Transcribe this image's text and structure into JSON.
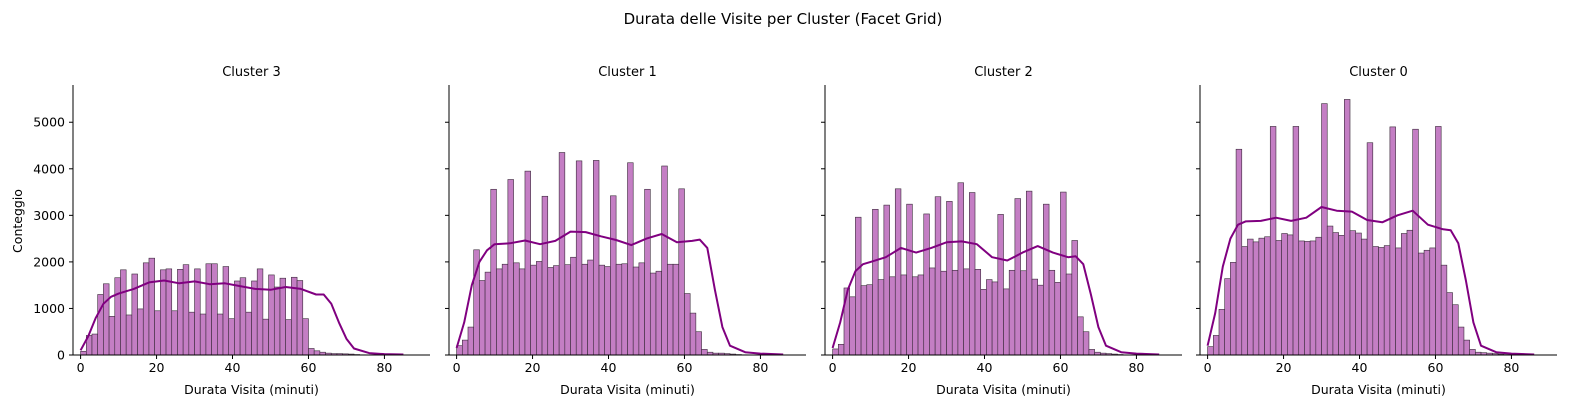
{
  "figure": {
    "title": "Durata delle Visite per Cluster (Facet Grid)"
  },
  "colors": {
    "bar_fill": "#c47ec4",
    "bar_stroke": "#3a2a3a",
    "kde_line": "#800080",
    "axis": "#000000"
  },
  "chart_data": [
    {
      "type": "bar",
      "title": "Cluster 3",
      "xlabel": "Durata Visita (minuti)",
      "ylabel": "Conteggio",
      "xlim": [
        -2,
        92
      ],
      "ylim": [
        0,
        5800
      ],
      "xticks": [
        0,
        20,
        40,
        60,
        80
      ],
      "yticks": [
        0,
        1000,
        2000,
        3000,
        4000,
        5000
      ],
      "bin_width": 1.5,
      "bin_start": 0,
      "values": [
        80,
        420,
        450,
        1300,
        1530,
        830,
        1660,
        1830,
        860,
        1740,
        990,
        1980,
        2080,
        950,
        1830,
        1850,
        950,
        1840,
        1940,
        920,
        1850,
        880,
        1960,
        1960,
        880,
        1900,
        780,
        1590,
        1660,
        920,
        1590,
        1850,
        770,
        1720,
        1460,
        1650,
        760,
        1670,
        1600,
        780,
        140,
        90,
        60,
        40,
        30,
        30,
        25,
        20,
        10,
        5,
        0,
        0,
        0,
        0,
        0,
        0,
        0
      ],
      "kde": {
        "x": [
          0,
          2,
          4,
          6,
          8,
          10,
          14,
          18,
          22,
          26,
          30,
          34,
          38,
          42,
          46,
          50,
          54,
          58,
          62,
          64,
          66,
          68,
          70,
          72,
          76,
          80,
          85
        ],
        "y": [
          100,
          400,
          800,
          1100,
          1250,
          1320,
          1420,
          1560,
          1600,
          1540,
          1580,
          1520,
          1540,
          1480,
          1420,
          1400,
          1460,
          1420,
          1300,
          1300,
          1100,
          700,
          350,
          140,
          40,
          20,
          10
        ]
      },
      "show_yticklabels": true
    },
    {
      "type": "bar",
      "title": "Cluster 1",
      "xlabel": "Durata Visita (minuti)",
      "ylabel": "",
      "xlim": [
        -2,
        92
      ],
      "ylim": [
        0,
        5800
      ],
      "xticks": [
        0,
        20,
        40,
        60,
        80
      ],
      "yticks": [
        0,
        1000,
        2000,
        3000,
        4000,
        5000
      ],
      "bin_width": 1.5,
      "bin_start": 0,
      "values": [
        200,
        320,
        600,
        2260,
        1600,
        1780,
        3560,
        1850,
        1950,
        3770,
        1980,
        1850,
        3950,
        1930,
        2010,
        3410,
        1880,
        1920,
        4350,
        1940,
        2100,
        4170,
        1950,
        2040,
        4180,
        1930,
        1900,
        3420,
        1950,
        1960,
        4130,
        1890,
        1980,
        3560,
        1760,
        1800,
        4060,
        1950,
        1950,
        3570,
        1320,
        900,
        500,
        120,
        60,
        40,
        40,
        30,
        20,
        10,
        5,
        0,
        0,
        0,
        0,
        0,
        0
      ],
      "kde": {
        "x": [
          0,
          2,
          4,
          6,
          8,
          10,
          14,
          18,
          22,
          26,
          30,
          34,
          38,
          42,
          46,
          50,
          54,
          58,
          62,
          64,
          66,
          68,
          70,
          72,
          76,
          80,
          86
        ],
        "y": [
          150,
          700,
          1500,
          2000,
          2250,
          2380,
          2400,
          2460,
          2380,
          2450,
          2650,
          2640,
          2550,
          2470,
          2360,
          2500,
          2600,
          2420,
          2450,
          2480,
          2300,
          1400,
          600,
          200,
          60,
          30,
          10
        ]
      },
      "show_yticklabels": false
    },
    {
      "type": "bar",
      "title": "Cluster 2",
      "xlabel": "Durata Visita (minuti)",
      "ylabel": "",
      "xlim": [
        -2,
        92
      ],
      "ylim": [
        0,
        5800
      ],
      "xticks": [
        0,
        20,
        40,
        60,
        80
      ],
      "yticks": [
        0,
        1000,
        2000,
        3000,
        4000,
        5000
      ],
      "bin_width": 1.5,
      "bin_start": 0,
      "values": [
        130,
        230,
        1440,
        1250,
        2960,
        1490,
        1510,
        3130,
        1620,
        3220,
        1680,
        3570,
        1720,
        3240,
        1680,
        1720,
        3030,
        1870,
        3400,
        1800,
        3300,
        1820,
        3700,
        1850,
        3490,
        1840,
        1410,
        1620,
        1570,
        3020,
        1420,
        1820,
        3360,
        1810,
        3520,
        1630,
        1500,
        3240,
        1820,
        1560,
        3500,
        1740,
        2460,
        820,
        500,
        120,
        60,
        40,
        30,
        20,
        10,
        0,
        0,
        0,
        0,
        0,
        0
      ],
      "kde": {
        "x": [
          0,
          2,
          4,
          6,
          8,
          10,
          14,
          18,
          22,
          26,
          30,
          34,
          38,
          42,
          46,
          50,
          54,
          58,
          62,
          64,
          66,
          68,
          70,
          72,
          76,
          80,
          86
        ],
        "y": [
          150,
          700,
          1400,
          1800,
          1950,
          2000,
          2100,
          2300,
          2200,
          2300,
          2420,
          2440,
          2380,
          2100,
          2030,
          2200,
          2340,
          2200,
          2100,
          2120,
          1950,
          1300,
          600,
          200,
          60,
          30,
          10
        ]
      },
      "show_yticklabels": false
    },
    {
      "type": "bar",
      "title": "Cluster 0",
      "xlabel": "Durata Visita (minuti)",
      "ylabel": "",
      "xlim": [
        -2,
        92
      ],
      "ylim": [
        0,
        5800
      ],
      "xticks": [
        0,
        20,
        40,
        60,
        80
      ],
      "yticks": [
        0,
        1000,
        2000,
        3000,
        4000,
        5000
      ],
      "bin_width": 1.5,
      "bin_start": 0,
      "values": [
        180,
        420,
        980,
        1640,
        1990,
        4420,
        2330,
        2490,
        2430,
        2510,
        2540,
        4910,
        2460,
        2610,
        2580,
        4910,
        2450,
        2440,
        2450,
        2530,
        5400,
        2770,
        2630,
        2570,
        5490,
        2670,
        2620,
        2490,
        4560,
        2330,
        2310,
        2350,
        4900,
        2300,
        2610,
        2680,
        4850,
        2190,
        2250,
        2300,
        4910,
        1930,
        1340,
        1080,
        600,
        320,
        120,
        60,
        50,
        40,
        30,
        20,
        10,
        0,
        0,
        0,
        0
      ],
      "kde": {
        "x": [
          0,
          2,
          4,
          6,
          8,
          10,
          14,
          18,
          22,
          26,
          30,
          34,
          38,
          42,
          46,
          50,
          54,
          58,
          62,
          64,
          66,
          68,
          70,
          72,
          76,
          80,
          86
        ],
        "y": [
          200,
          900,
          1900,
          2500,
          2800,
          2870,
          2880,
          2950,
          2880,
          2950,
          3180,
          3100,
          3080,
          2900,
          2850,
          3000,
          3100,
          2800,
          2700,
          2680,
          2400,
          1600,
          700,
          200,
          60,
          30,
          10
        ]
      },
      "show_yticklabels": false
    }
  ]
}
